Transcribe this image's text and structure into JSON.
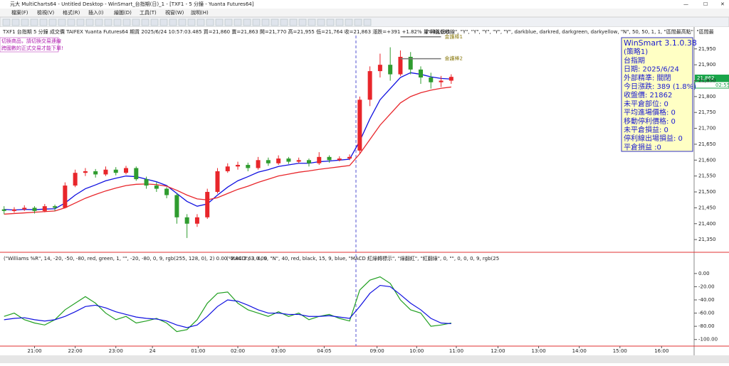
{
  "window": {
    "title": "元大 MultiCharts64 - Untitled Desktop - WinSmart_台指期(日)_1 - [TXF1 - 5 分鐘 - Yuanta Futures64]"
  },
  "menu": [
    "檔案(F)",
    "檢視(V)",
    "格式(R)",
    "插入(I)",
    "繪圖(D)",
    "工具(T)",
    "視窗(W)",
    "說明(H)"
  ],
  "info_bar": "TXF1  台指期  5 分鐘  成交價  TAIFEX  Yuanta Futures64  期貨  2025/6/24  10:57:03.485  買=21,860  賣=21,863  開=21,770  高=21,955  低=21,764  收=21,863  漲跌=+391 +1.82%  量=44,095",
  "strategy_params": "(\"開盤低收線\", \"Y\", \"Y\", \"Y\", \"Y\", \"Y\", darkblue, darkred, darkgreen, darkyellow, \"N\", 50, 50, 1, 1, \"區間最高點\", \"區間最",
  "notes": [
    "切換商品，請切換交易連線",
    "跨國數的正式交易才能下單!"
  ],
  "info_box": [
    "WinSmart 3.1.0.38",
    "(策略1)",
    "台指期",
    "日期: 2025/6/24",
    "外部精準: 關閉",
    "今日漲跌: 389 (1.8%)",
    "收盤價: 21862",
    "未平倉部位: 0",
    "平均進場價格: 0",
    "移動停利價格: 0",
    "未平倉損益: 0",
    "停利線出場損益: 0",
    "平倉損益 :0"
  ],
  "price_tag": "21,862",
  "time_tag": "02:55",
  "indicator_headers": [
    "(\"Williams %R\", 14, -20, -50, -80, red, green, 1, \"\", -20, -80, 0, 9, rgb(255, 128, 0), 2)  0.00  -2.84  3.63  0.00",
    "(\"MACD\", 3, 6, 9, \"N\", 40, red, black, 15, 9, blue, \"MACD 紅綠轉標示\", \"綠翻紅\", \"紅翻綠\", 0, \"\", 0, 0, 0, 9, rgb(25"
  ],
  "chart_data": [
    {
      "type": "candlestick",
      "up_color": "#e8262b",
      "down_color": "#2f9c2f",
      "x": [
        -3,
        -2,
        -1,
        0,
        1,
        2,
        3,
        4,
        5,
        6,
        7,
        8,
        9,
        10,
        11,
        12,
        13,
        14,
        15,
        16,
        17,
        18,
        19,
        20,
        21,
        22,
        23,
        24,
        25,
        26,
        27,
        28,
        29,
        30,
        31,
        32,
        33,
        34,
        35,
        36,
        37,
        38,
        39,
        40,
        41
      ],
      "open": [
        21445,
        21440,
        21445,
        21450,
        21440,
        21455,
        21450,
        21520,
        21560,
        21565,
        21555,
        21570,
        21560,
        21575,
        21540,
        21520,
        21510,
        21490,
        21420,
        21400,
        21420,
        21500,
        21565,
        21580,
        21585,
        21575,
        21600,
        21590,
        21605,
        21595,
        21600,
        21590,
        21610,
        21600,
        21605,
        21630,
        21790,
        21880,
        21900,
        21870,
        21925,
        21885,
        21860,
        21845,
        21850
      ],
      "high": [
        21455,
        21452,
        21458,
        21455,
        21462,
        21460,
        21530,
        21570,
        21575,
        21572,
        21580,
        21578,
        21582,
        21580,
        21548,
        21530,
        21515,
        21495,
        21430,
        21430,
        21510,
        21575,
        21590,
        21595,
        21592,
        21610,
        21608,
        21615,
        21610,
        21608,
        21605,
        21625,
        21615,
        21612,
        21618,
        21800,
        21895,
        21935,
        21955,
        21945,
        21940,
        21895,
        21875,
        21865,
        21870
      ],
      "low": [
        21430,
        21435,
        21440,
        21432,
        21436,
        21440,
        21448,
        21515,
        21550,
        21545,
        21550,
        21552,
        21555,
        21535,
        21510,
        21500,
        21480,
        21400,
        21355,
        21390,
        21415,
        21495,
        21560,
        21570,
        21565,
        21570,
        21582,
        21585,
        21588,
        21590,
        21580,
        21585,
        21592,
        21596,
        21600,
        21620,
        21770,
        21860,
        21850,
        21865,
        21870,
        21840,
        21825,
        21830,
        21840
      ],
      "close": [
        21440,
        21445,
        21450,
        21440,
        21455,
        21450,
        21520,
        21560,
        21565,
        21555,
        21570,
        21560,
        21575,
        21540,
        21520,
        21510,
        21490,
        21420,
        21400,
        21420,
        21500,
        21565,
        21580,
        21585,
        21575,
        21600,
        21590,
        21605,
        21595,
        21600,
        21590,
        21610,
        21600,
        21605,
        21610,
        21790,
        21880,
        21900,
        21870,
        21925,
        21885,
        21860,
        21845,
        21850,
        21862
      ],
      "series": [
        {
          "color": "#1010e0",
          "values": [
            21445,
            21443,
            21445,
            21444,
            21446,
            21447,
            21465,
            21490,
            21510,
            21522,
            21535,
            21543,
            21550,
            21548,
            21540,
            21532,
            21520,
            21495,
            21470,
            21455,
            21462,
            21490,
            21515,
            21535,
            21548,
            21562,
            21570,
            21580,
            21585,
            21590,
            21590,
            21595,
            21597,
            21600,
            21603,
            21660,
            21730,
            21790,
            21825,
            21860,
            21875,
            21870,
            21862,
            21857,
            21855
          ]
        },
        {
          "color": "#e8262b",
          "values": [
            21430,
            21432,
            21434,
            21436,
            21438,
            21440,
            21450,
            21465,
            21480,
            21492,
            21503,
            21512,
            21520,
            21524,
            21525,
            21523,
            21518,
            21505,
            21490,
            21478,
            21475,
            21482,
            21495,
            21508,
            21518,
            21530,
            21540,
            21550,
            21556,
            21562,
            21566,
            21571,
            21575,
            21579,
            21583,
            21620,
            21665,
            21710,
            21745,
            21780,
            21800,
            21812,
            21820,
            21826,
            21830
          ]
        }
      ],
      "levels": [
        {
          "label": "金護棒1",
          "value": 21988,
          "x": [
            36,
            40
          ]
        },
        {
          "label": "金護棒2",
          "value": 21919,
          "x": [
            36,
            40
          ]
        }
      ],
      "xlim": [
        -3.4,
        64.9
      ],
      "xticks": [
        {
          "value": 0,
          "label": "21:00"
        },
        {
          "value": 4,
          "label": "22:00"
        },
        {
          "value": 8,
          "label": "23:00"
        },
        {
          "value": 11.6,
          "label": "24"
        },
        {
          "value": 16.1,
          "label": "01:00"
        },
        {
          "value": 20,
          "label": "02:00"
        },
        {
          "value": 24,
          "label": "03:00"
        },
        {
          "value": 28.5,
          "label": "04:05"
        },
        {
          "value": 33.7,
          "label": "09:00"
        },
        {
          "value": 37.6,
          "label": "10:00"
        },
        {
          "value": 41.5,
          "label": "11:00"
        },
        {
          "value": 45.6,
          "label": "12:00"
        },
        {
          "value": 49.6,
          "label": "13:00"
        },
        {
          "value": 53.6,
          "label": "14:00"
        },
        {
          "value": 57.6,
          "label": "15:00"
        },
        {
          "value": 61.7,
          "label": "16:00"
        }
      ],
      "ylim": [
        21310,
        21992
      ],
      "yticks": [
        {
          "value": 21950,
          "label": "21,950"
        },
        {
          "value": 21900,
          "label": "21,900"
        },
        {
          "value": 21850,
          "label": "21,850"
        },
        {
          "value": 21800,
          "label": "21,800"
        },
        {
          "value": 21750,
          "label": "21,750"
        },
        {
          "value": 21700,
          "label": "21,700"
        },
        {
          "value": 21650,
          "label": "21,650"
        },
        {
          "value": 21600,
          "label": "21,600"
        },
        {
          "value": 21550,
          "label": "21,550"
        },
        {
          "value": 21500,
          "label": "21,500"
        },
        {
          "value": 21450,
          "label": "21,450"
        },
        {
          "value": 21400,
          "label": "21,400"
        },
        {
          "value": 21350,
          "label": "21,350"
        }
      ]
    },
    {
      "type": "line",
      "xlim": [
        -3.4,
        64.9
      ],
      "x": [
        -3,
        -2,
        -1,
        0,
        1,
        2,
        3,
        4,
        5,
        6,
        7,
        8,
        9,
        10,
        11,
        12,
        13,
        14,
        15,
        16,
        17,
        18,
        19,
        20,
        21,
        22,
        23,
        24,
        25,
        26,
        27,
        28,
        29,
        30,
        31,
        32,
        33,
        34,
        35,
        36,
        37,
        38,
        39,
        40,
        41
      ],
      "series": [
        {
          "color": "#22a022",
          "values": [
            -65,
            -60,
            -70,
            -75,
            -78,
            -70,
            -55,
            -45,
            -35,
            -45,
            -60,
            -70,
            -65,
            -75,
            -72,
            -68,
            -75,
            -88,
            -85,
            -70,
            -45,
            -30,
            -28,
            -45,
            -55,
            -60,
            -65,
            -58,
            -65,
            -60,
            -70,
            -65,
            -62,
            -68,
            -72,
            -25,
            -10,
            -5,
            -15,
            -40,
            -55,
            -60,
            -80,
            -78,
            -75
          ]
        },
        {
          "color": "#1010e0",
          "values": [
            -70,
            -68,
            -67,
            -70,
            -72,
            -70,
            -65,
            -58,
            -50,
            -48,
            -52,
            -58,
            -62,
            -66,
            -68,
            -69,
            -72,
            -78,
            -82,
            -78,
            -65,
            -50,
            -40,
            -42,
            -48,
            -55,
            -60,
            -60,
            -62,
            -62,
            -65,
            -65,
            -64,
            -66,
            -68,
            -50,
            -30,
            -18,
            -20,
            -32,
            -45,
            -55,
            -68,
            -75,
            -76
          ]
        }
      ],
      "ylim": [
        -110,
        16
      ],
      "yticks": [
        {
          "value": 0,
          "label": "0.00"
        },
        {
          "value": -20,
          "label": "-20.00"
        },
        {
          "value": -40,
          "label": "-40.00"
        },
        {
          "value": -60,
          "label": "-60.00"
        },
        {
          "value": -80,
          "label": "-80.00"
        },
        {
          "value": -100,
          "label": "-100.00"
        }
      ]
    }
  ]
}
